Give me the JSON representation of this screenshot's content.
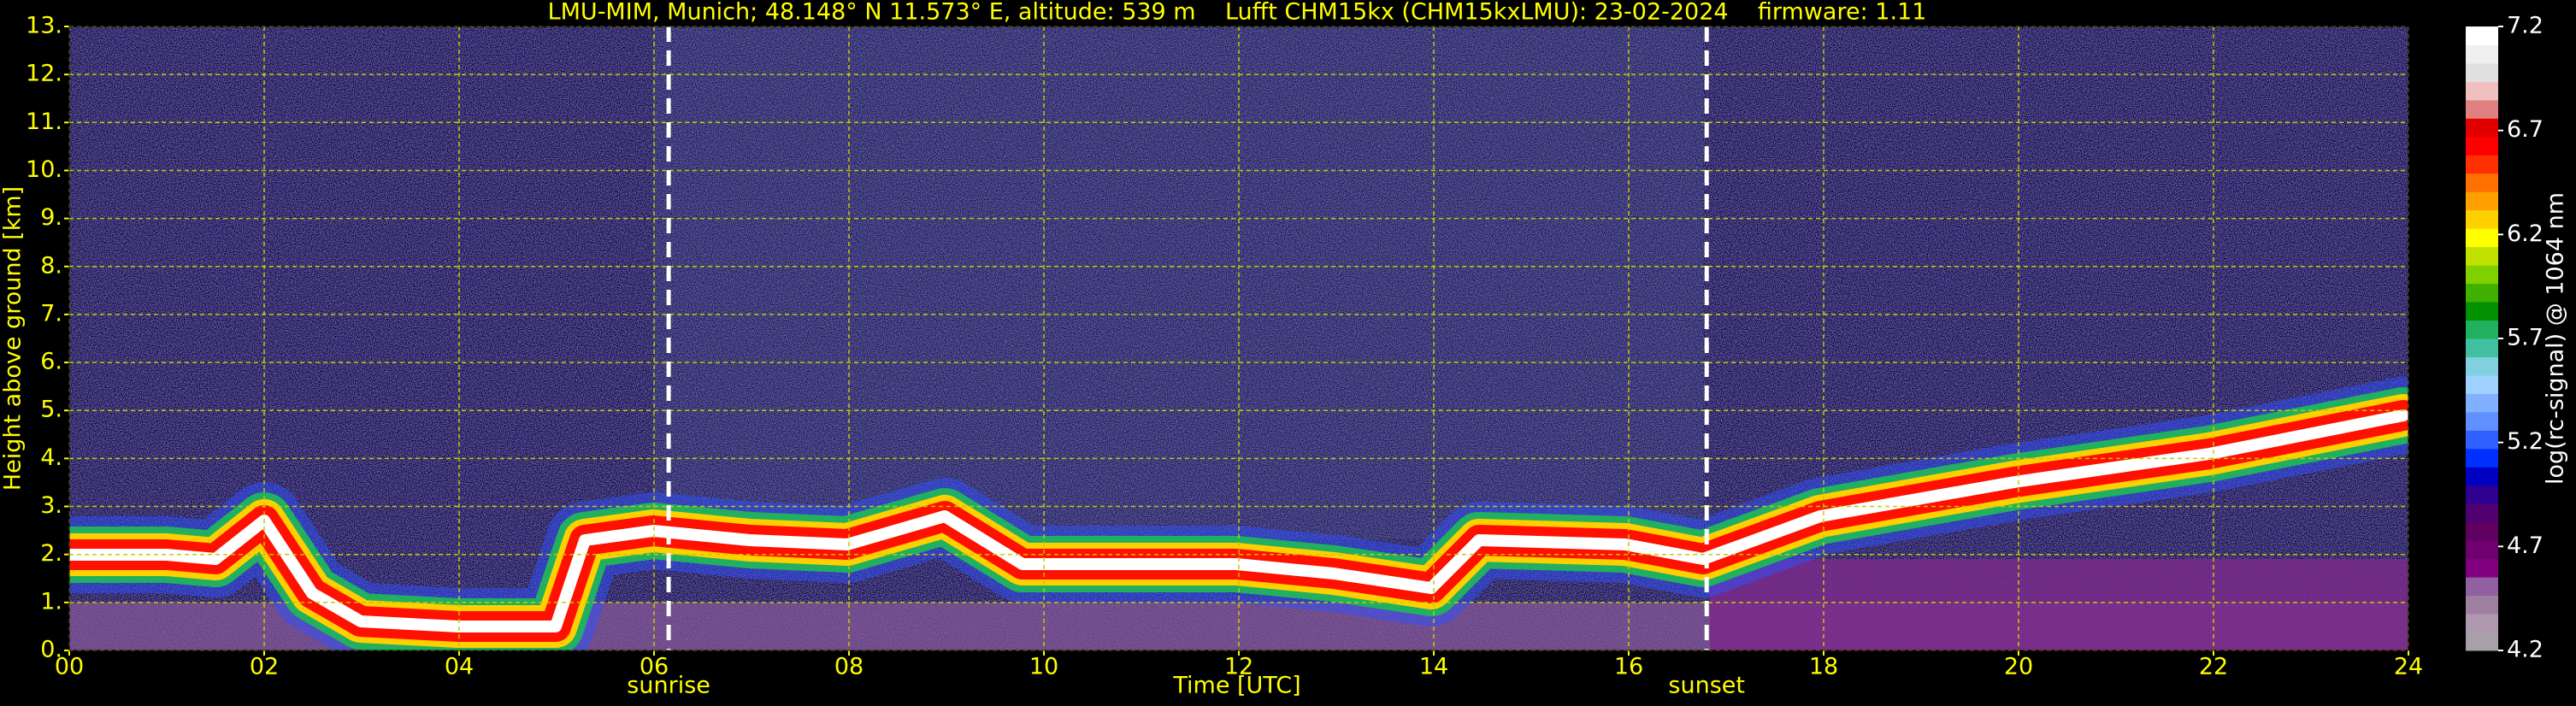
{
  "chart_data": {
    "type": "heatmap",
    "title": "LMU-MIM, Munich; 48.148° N 11.573° E, altitude: 539 m    Lufft CHM15kx (CHM15kxLMU): 23-02-2024    firmware: 1.11",
    "x_label": "Time [UTC]",
    "y_label": "Height above ground [km]",
    "xlim": [
      0,
      24
    ],
    "xticks": [
      {
        "value": 0,
        "label": "00"
      },
      {
        "value": 2,
        "label": "02"
      },
      {
        "value": 4,
        "label": "04"
      },
      {
        "value": 6,
        "label": "06"
      },
      {
        "value": 8,
        "label": "08"
      },
      10,
      12,
      14,
      16,
      18,
      20,
      22,
      24
    ],
    "ylim": [
      0,
      13
    ],
    "yticks": [
      {
        "value": 0,
        "label": "0."
      },
      {
        "value": 1,
        "label": "1."
      },
      {
        "value": 2,
        "label": "2."
      },
      {
        "value": 3,
        "label": "3."
      },
      {
        "value": 4,
        "label": "4."
      },
      {
        "value": 5,
        "label": "5."
      },
      {
        "value": 6,
        "label": "6."
      },
      {
        "value": 7,
        "label": "7."
      },
      {
        "value": 8,
        "label": "8."
      },
      {
        "value": 9,
        "label": "9."
      },
      {
        "value": 10,
        "label": "10."
      },
      {
        "value": 11,
        "label": "11."
      },
      {
        "value": 12,
        "label": "12."
      },
      {
        "value": 13,
        "label": "13."
      }
    ],
    "grid": true,
    "grid_color": "#c8c800",
    "annotations": [
      {
        "label": "sunrise",
        "x": 6.15
      },
      {
        "label": "sunset",
        "x": 16.8
      }
    ],
    "colorbar": {
      "label": "log(rc-signal) @ 1064 nm",
      "lim": [
        4.2,
        7.2
      ],
      "ticks": [
        4.2,
        4.7,
        5.2,
        5.7,
        6.2,
        6.7,
        7.2
      ],
      "colors": [
        "#a8a0a8",
        "#b098b0",
        "#a080a0",
        "#9060a0",
        "#800080",
        "#700070",
        "#600060",
        "#500070",
        "#300090",
        "#0000c0",
        "#0030ff",
        "#3060ff",
        "#6090ff",
        "#80b0ff",
        "#a0d0ff",
        "#80d0e0",
        "#40c0a0",
        "#20b060",
        "#009000",
        "#40b000",
        "#80d000",
        "#c0e000",
        "#ffff00",
        "#ffd000",
        "#ffa000",
        "#ff7000",
        "#ff3000",
        "#ff0000",
        "#e00000",
        "#e08080",
        "#f0c0c0",
        "#e0e0e0",
        "#f0f0f0",
        "#ffffff"
      ]
    }
  }
}
